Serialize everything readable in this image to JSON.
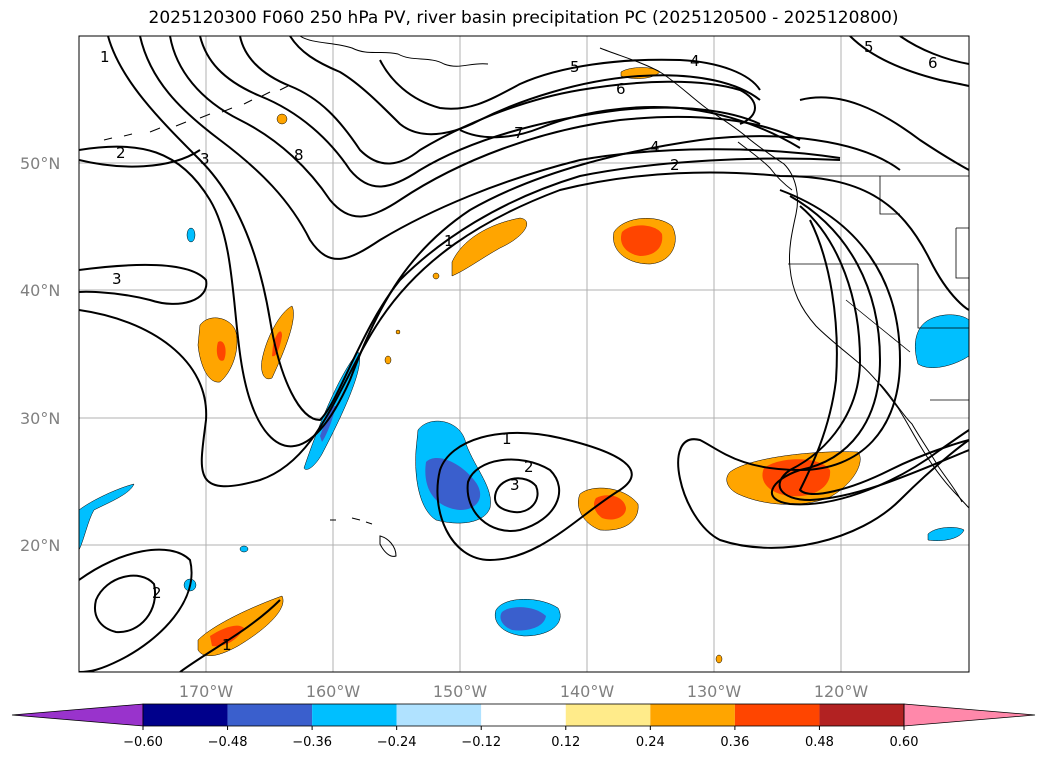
{
  "title": "2025120300 F060 250 hPa PV, river basin precipitation PC (2025120500 - 2025120800)",
  "lat_labels": [
    "50°N",
    "40°N",
    "30°N",
    "20°N"
  ],
  "lon_labels": [
    "170°W",
    "160°W",
    "150°W",
    "140°W",
    "130°W",
    "120°W"
  ],
  "colorbar": {
    "ticks": [
      "−0.60",
      "−0.48",
      "−0.36",
      "−0.24",
      "−0.12",
      "0.12",
      "0.24",
      "0.36",
      "0.48",
      "0.60"
    ],
    "colors": [
      "#9933cc",
      "#00008b",
      "#3a5fcd",
      "#00bfff",
      "#b0e2ff",
      "#ffffff",
      "#ffeb8a",
      "#ffa500",
      "#ff4500",
      "#b22222",
      "#ff88aa"
    ]
  },
  "contour_labels": [
    "1",
    "2",
    "3",
    "8",
    "5",
    "6",
    "4",
    "7",
    "4",
    "2",
    "1",
    "5",
    "6",
    "1",
    "2",
    "3",
    "3",
    "2",
    "1"
  ],
  "colors": {
    "blue_light": "#00bfff",
    "blue_dark": "#3a5fcd",
    "orange": "#ffa500",
    "red_orange": "#ff4500"
  }
}
